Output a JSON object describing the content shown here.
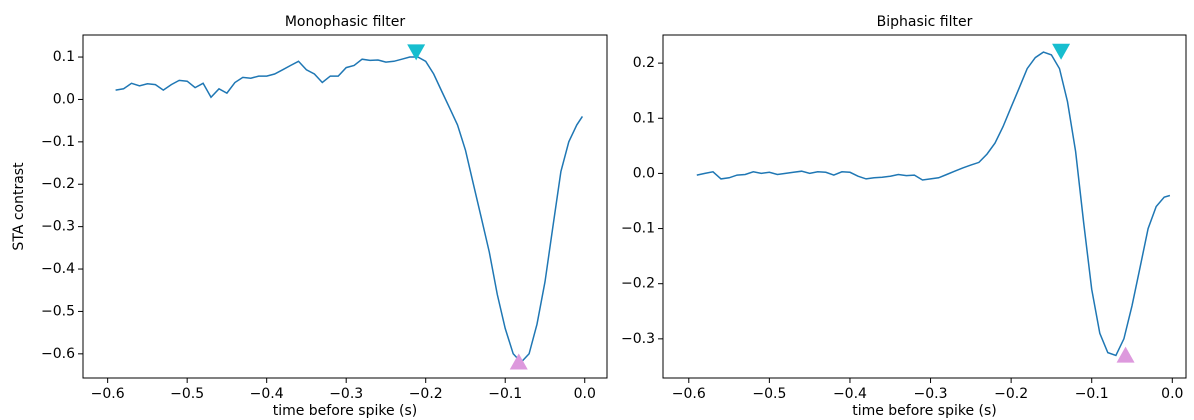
{
  "chart_data": [
    {
      "type": "line",
      "title": "Monophasic filter",
      "xlabel": "time before spike (s)",
      "ylabel": "STA contrast",
      "xlim": [
        -0.631,
        0.028
      ],
      "ylim": [
        -0.657,
        0.152
      ],
      "xticks": [
        {
          "value": -0.6,
          "label": "−0.6"
        },
        {
          "value": -0.5,
          "label": "−0.5"
        },
        {
          "value": -0.4,
          "label": "−0.4"
        },
        {
          "value": -0.3,
          "label": "−0.3"
        },
        {
          "value": -0.2,
          "label": "−0.2"
        },
        {
          "value": -0.1,
          "label": "−0.1"
        },
        {
          "value": 0.0,
          "label": "0.0"
        }
      ],
      "yticks": [
        {
          "value": -0.6,
          "label": "−0.6"
        },
        {
          "value": -0.5,
          "label": "−0.5"
        },
        {
          "value": -0.4,
          "label": "−0.4"
        },
        {
          "value": -0.3,
          "label": "−0.3"
        },
        {
          "value": -0.2,
          "label": "−0.2"
        },
        {
          "value": -0.1,
          "label": "−0.1"
        },
        {
          "value": 0.0,
          "label": "0.0"
        },
        0.1
      ],
      "series": [
        {
          "color": "#1f77b4",
          "x": [
            -0.59,
            -0.58,
            -0.57,
            -0.56,
            -0.55,
            -0.54,
            -0.53,
            -0.52,
            -0.51,
            -0.5,
            -0.49,
            -0.48,
            -0.47,
            -0.46,
            -0.45,
            -0.44,
            -0.43,
            -0.42,
            -0.41,
            -0.4,
            -0.39,
            -0.38,
            -0.37,
            -0.36,
            -0.35,
            -0.34,
            -0.33,
            -0.32,
            -0.31,
            -0.3,
            -0.29,
            -0.28,
            -0.27,
            -0.26,
            -0.25,
            -0.24,
            -0.23,
            -0.22,
            -0.21,
            -0.2,
            -0.19,
            -0.18,
            -0.17,
            -0.16,
            -0.15,
            -0.14,
            -0.13,
            -0.12,
            -0.11,
            -0.1,
            -0.09,
            -0.08,
            -0.07,
            -0.06,
            -0.05,
            -0.04,
            -0.03,
            -0.02,
            -0.01,
            -0.003
          ],
          "values": [
            0.022,
            0.025,
            0.038,
            0.032,
            0.037,
            0.035,
            0.022,
            0.035,
            0.045,
            0.043,
            0.028,
            0.038,
            0.005,
            0.025,
            0.015,
            0.04,
            0.052,
            0.05,
            0.055,
            0.055,
            0.06,
            0.07,
            0.08,
            0.09,
            0.07,
            0.06,
            0.04,
            0.055,
            0.055,
            0.075,
            0.08,
            0.095,
            0.092,
            0.093,
            0.088,
            0.09,
            0.095,
            0.1,
            0.1,
            0.09,
            0.06,
            0.02,
            -0.02,
            -0.06,
            -0.12,
            -0.2,
            -0.28,
            -0.36,
            -0.46,
            -0.54,
            -0.6,
            -0.62,
            -0.6,
            -0.53,
            -0.43,
            -0.3,
            -0.17,
            -0.1,
            -0.06,
            -0.04
          ]
        }
      ],
      "peak": {
        "x": -0.212,
        "y": 0.113,
        "color": "#17becf"
      },
      "trough": {
        "x": -0.083,
        "y": -0.62,
        "color": "#dd99dd"
      }
    },
    {
      "type": "line",
      "title": "Biphasic filter",
      "xlabel": "time before spike (s)",
      "xlim": [
        -0.632,
        0.017
      ],
      "ylim": [
        -0.371,
        0.251
      ],
      "xticks": [
        {
          "value": -0.6,
          "label": "−0.6"
        },
        {
          "value": -0.5,
          "label": "−0.5"
        },
        {
          "value": -0.4,
          "label": "−0.4"
        },
        {
          "value": -0.3,
          "label": "−0.3"
        },
        {
          "value": -0.2,
          "label": "−0.2"
        },
        {
          "value": -0.1,
          "label": "−0.1"
        },
        {
          "value": 0.0,
          "label": "0.0"
        }
      ],
      "yticks": [
        {
          "value": -0.3,
          "label": "−0.3"
        },
        {
          "value": -0.2,
          "label": "−0.2"
        },
        {
          "value": -0.1,
          "label": "−0.1"
        },
        {
          "value": 0.0,
          "label": "0.0"
        },
        0.1,
        0.2
      ],
      "series": [
        {
          "color": "#1f77b4",
          "x": [
            -0.59,
            -0.58,
            -0.57,
            -0.56,
            -0.55,
            -0.54,
            -0.53,
            -0.52,
            -0.51,
            -0.5,
            -0.49,
            -0.48,
            -0.47,
            -0.46,
            -0.45,
            -0.44,
            -0.43,
            -0.42,
            -0.41,
            -0.4,
            -0.39,
            -0.38,
            -0.37,
            -0.36,
            -0.35,
            -0.34,
            -0.33,
            -0.32,
            -0.31,
            -0.3,
            -0.29,
            -0.28,
            -0.27,
            -0.26,
            -0.25,
            -0.24,
            -0.23,
            -0.22,
            -0.21,
            -0.2,
            -0.19,
            -0.18,
            -0.17,
            -0.16,
            -0.15,
            -0.14,
            -0.13,
            -0.12,
            -0.11,
            -0.1,
            -0.09,
            -0.08,
            -0.07,
            -0.06,
            -0.05,
            -0.04,
            -0.03,
            -0.02,
            -0.01,
            -0.003
          ],
          "values": [
            -0.003,
            0.0,
            0.003,
            -0.01,
            -0.008,
            -0.003,
            -0.002,
            0.003,
            0.0,
            0.002,
            -0.002,
            0.0,
            0.002,
            0.004,
            0.0,
            0.003,
            0.002,
            -0.003,
            0.003,
            0.002,
            -0.005,
            -0.01,
            -0.008,
            -0.007,
            -0.005,
            -0.002,
            -0.004,
            -0.003,
            -0.012,
            -0.01,
            -0.008,
            -0.002,
            0.004,
            0.01,
            0.015,
            0.02,
            0.035,
            0.055,
            0.085,
            0.12,
            0.155,
            0.19,
            0.21,
            0.22,
            0.215,
            0.19,
            0.13,
            0.04,
            -0.09,
            -0.21,
            -0.29,
            -0.325,
            -0.33,
            -0.3,
            -0.24,
            -0.17,
            -0.1,
            -0.06,
            -0.043,
            -0.04
          ]
        }
      ],
      "peak": {
        "x": -0.138,
        "y": 0.222,
        "color": "#17becf"
      },
      "trough": {
        "x": -0.058,
        "y": -0.33,
        "color": "#dd99dd"
      }
    }
  ]
}
